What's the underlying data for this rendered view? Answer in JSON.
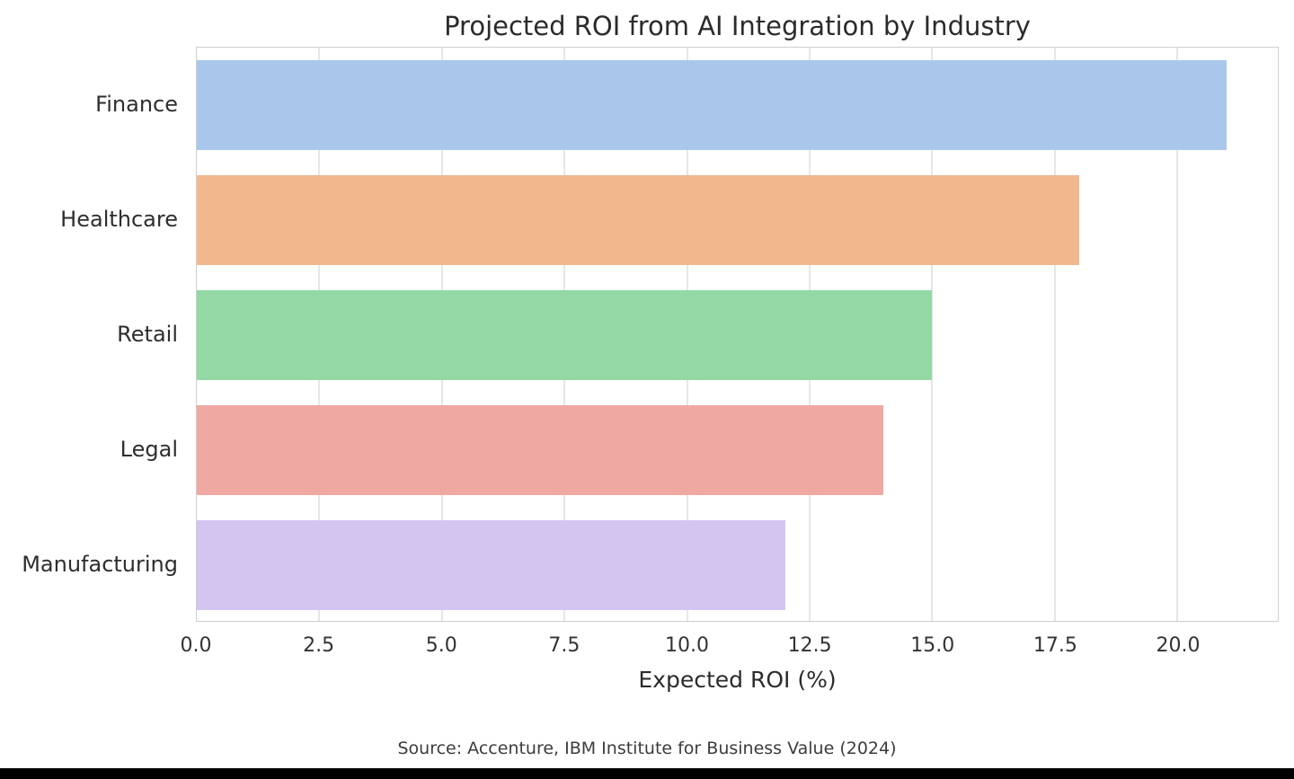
{
  "chart_data": {
    "type": "bar",
    "orientation": "horizontal",
    "title": "Projected ROI from AI Integration by Industry",
    "xlabel": "Expected ROI (%)",
    "categories": [
      "Finance",
      "Healthcare",
      "Retail",
      "Legal",
      "Manufacturing"
    ],
    "values": [
      21,
      18,
      15,
      14,
      12
    ],
    "bar_colors": [
      "#a9c7ea",
      "#f1b88d",
      "#94d8a5",
      "#f0a8a3",
      "#d3c5f0"
    ],
    "xlim": [
      0,
      22.05
    ],
    "xticks": [
      0.0,
      2.5,
      5.0,
      7.5,
      10.0,
      12.5,
      15.0,
      17.5,
      20.0
    ],
    "xtick_labels": [
      "0.0",
      "2.5",
      "5.0",
      "7.5",
      "10.0",
      "12.5",
      "15.0",
      "17.5",
      "20.0"
    ],
    "grid": true,
    "legend": false,
    "source": "Source: Accenture, IBM Institute for Business Value (2024)"
  },
  "style": {
    "grid_color": "#e6e6ea",
    "spine_color": "#cfcfd4",
    "text_color": "#2e2e2e",
    "bottom_bar_color": "#000000"
  }
}
